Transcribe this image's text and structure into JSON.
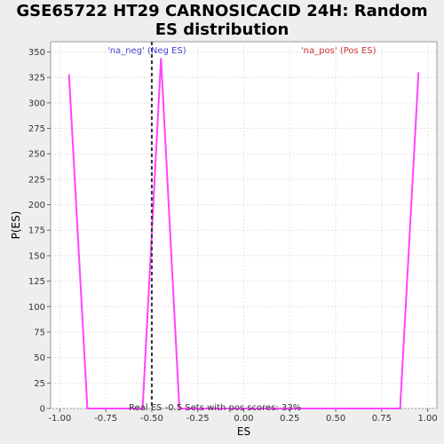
{
  "chart_data": {
    "type": "line",
    "title_line1": "GSE65722 HT29 CARNOSICACID 24H: Random",
    "title_line2": "ES distribution",
    "xlabel": "ES",
    "ylabel": "P(ES)",
    "xlim": [
      -1.05,
      1.05
    ],
    "ylim": [
      0,
      360
    ],
    "x_ticks": [
      "-1.00",
      "-0.75",
      "-0.50",
      "-0.25",
      "0.00",
      "0.25",
      "0.50",
      "0.75",
      "1.00"
    ],
    "y_ticks": [
      "0",
      "25",
      "50",
      "75",
      "100",
      "125",
      "150",
      "175",
      "200",
      "225",
      "250",
      "275",
      "300",
      "325",
      "350"
    ],
    "grid": true,
    "series": [
      {
        "color": "#ff44ff",
        "x": [
          -0.95,
          -0.85,
          -0.55,
          -0.45,
          -0.35,
          0.85,
          0.95
        ],
        "y": [
          328,
          0,
          0,
          344,
          0,
          0,
          330
        ]
      }
    ],
    "real_es": -0.5,
    "neg_label": "'na_neg' (Neg ES)",
    "neg_color": "#4444cc",
    "pos_label": "'na_pos' (Pos ES)",
    "pos_color": "#cc3333",
    "annotation": "Real ES -0.5 Sets with pos scores: 33%"
  }
}
